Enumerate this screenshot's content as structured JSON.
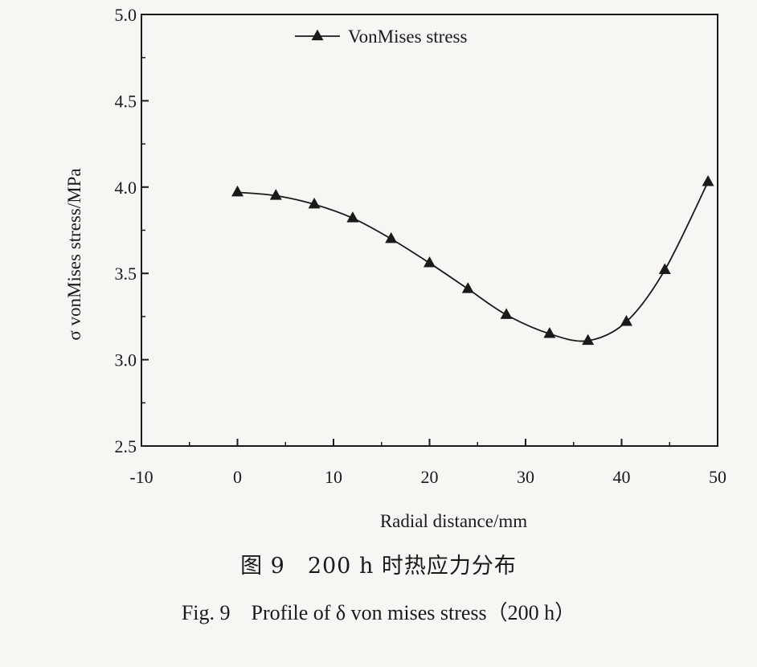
{
  "chart_data": {
    "type": "line",
    "x": [
      0,
      4,
      8,
      12,
      16,
      20,
      24,
      28,
      32.5,
      36.5,
      40.5,
      44.5,
      49
    ],
    "series": [
      {
        "name": "VonMises stress",
        "values": [
          3.97,
          3.95,
          3.9,
          3.82,
          3.7,
          3.56,
          3.41,
          3.26,
          3.15,
          3.11,
          3.22,
          3.52,
          4.03
        ],
        "marker": "triangle",
        "color": "#1a1a1a"
      }
    ],
    "xlabel": "Radial distance/mm",
    "ylabel": "σ vonMises stress/MPa",
    "xlim": [
      -10,
      50
    ],
    "ylim": [
      2.5,
      5.0
    ],
    "xticks": [
      -10,
      0,
      10,
      20,
      30,
      40,
      50
    ],
    "yticks": [
      2.5,
      3.0,
      3.5,
      4.0,
      4.5,
      5.0
    ],
    "xtick_labels": [
      "-10",
      "0",
      "10",
      "20",
      "30",
      "40",
      "50"
    ],
    "ytick_labels": [
      "2.5",
      "3.0",
      "3.5",
      "4.0",
      "4.5",
      "5.0"
    ],
    "legend_position": "top-left",
    "grid": false
  },
  "caption": {
    "chinese": "图 9　200 h 时热应力分布",
    "english": "Fig. 9　Profile of δ von mises stress（200 h）"
  }
}
